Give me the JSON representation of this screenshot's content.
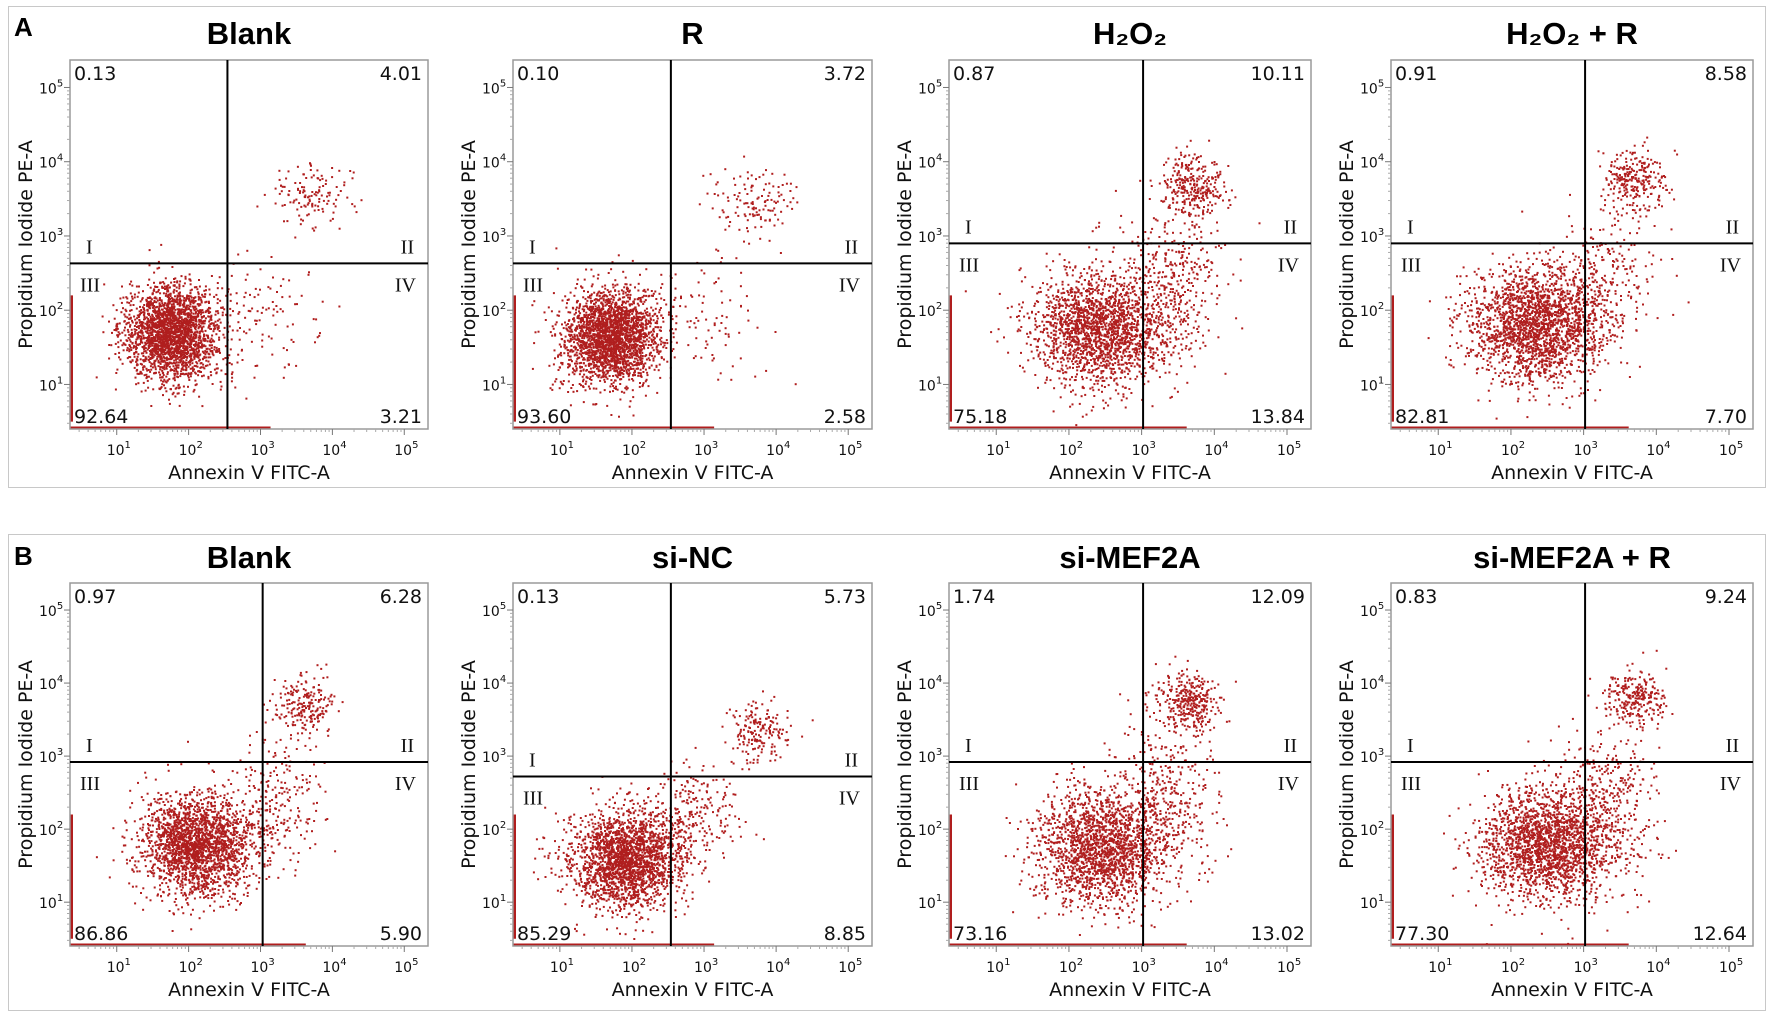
{
  "panels": [
    {
      "label": "A"
    },
    {
      "label": "B"
    }
  ],
  "quadrant_labels": [
    "I",
    "II",
    "III",
    "IV"
  ],
  "dot_color": "#b01e1e",
  "chart_data": [
    {
      "type": "scatter",
      "panel": "A",
      "title": "Blank",
      "xlabel": "Annexin V FITC-A",
      "ylabel": "Propidium Iodide PE-A",
      "x_scale": "log",
      "y_scale": "log",
      "x_range_log": [
        0.35,
        5.33
      ],
      "y_range_log": [
        0.4,
        5.37
      ],
      "tick_exponents": [
        1,
        2,
        3,
        4,
        5
      ],
      "gate_log": {
        "x": 2.54,
        "y": 2.63
      },
      "quadrants": {
        "upper_left": "0.13",
        "upper_right": "4.01",
        "lower_left": "92.64",
        "lower_right": "3.21"
      },
      "populations": [
        {
          "center_log": [
            1.75,
            1.7
          ],
          "sd_log": [
            0.32,
            0.32
          ],
          "share": 0.9
        },
        {
          "center_log": [
            3.7,
            3.55
          ],
          "sd_log": [
            0.3,
            0.2
          ],
          "share": 0.05
        },
        {
          "center_log": [
            2.9,
            1.9
          ],
          "sd_log": [
            0.5,
            0.4
          ],
          "share": 0.05
        }
      ]
    },
    {
      "type": "scatter",
      "panel": "A",
      "title": "R",
      "xlabel": "Annexin V FITC-A",
      "ylabel": "Propidium Iodide PE-A",
      "x_scale": "log",
      "y_scale": "log",
      "x_range_log": [
        0.35,
        5.33
      ],
      "y_range_log": [
        0.4,
        5.37
      ],
      "tick_exponents": [
        1,
        2,
        3,
        4,
        5
      ],
      "gate_log": {
        "x": 2.54,
        "y": 2.63
      },
      "quadrants": {
        "upper_left": "0.10",
        "upper_right": "3.72",
        "lower_left": "93.60",
        "lower_right": "2.58"
      },
      "populations": [
        {
          "center_log": [
            1.7,
            1.65
          ],
          "sd_log": [
            0.32,
            0.32
          ],
          "share": 0.91
        },
        {
          "center_log": [
            3.7,
            3.45
          ],
          "sd_log": [
            0.3,
            0.22
          ],
          "share": 0.05
        },
        {
          "center_log": [
            2.9,
            1.9
          ],
          "sd_log": [
            0.5,
            0.4
          ],
          "share": 0.04
        }
      ]
    },
    {
      "type": "scatter",
      "panel": "A",
      "title": "H₂O₂",
      "xlabel": "Annexin V FITC-A",
      "ylabel": "Propidium Iodide PE-A",
      "x_scale": "log",
      "y_scale": "log",
      "x_range_log": [
        0.35,
        5.33
      ],
      "y_range_log": [
        0.4,
        5.37
      ],
      "tick_exponents": [
        1,
        2,
        3,
        4,
        5
      ],
      "gate_log": {
        "x": 3.02,
        "y": 2.9
      },
      "quadrants": {
        "upper_left": "0.87",
        "upper_right": "10.11",
        "lower_left": "75.18",
        "lower_right": "13.84"
      },
      "populations": [
        {
          "center_log": [
            2.4,
            1.75
          ],
          "sd_log": [
            0.45,
            0.38
          ],
          "share": 0.74
        },
        {
          "center_log": [
            3.7,
            3.7
          ],
          "sd_log": [
            0.22,
            0.2
          ],
          "share": 0.11
        },
        {
          "center_log": [
            3.4,
            2.4
          ],
          "sd_log": [
            0.35,
            0.55
          ],
          "share": 0.15
        }
      ]
    },
    {
      "type": "scatter",
      "panel": "A",
      "title": "H₂O₂ + R",
      "xlabel": "Annexin V FITC-A",
      "ylabel": "Propidium Iodide PE-A",
      "x_scale": "log",
      "y_scale": "log",
      "x_range_log": [
        0.35,
        5.33
      ],
      "y_range_log": [
        0.4,
        5.37
      ],
      "tick_exponents": [
        1,
        2,
        3,
        4,
        5
      ],
      "gate_log": {
        "x": 3.02,
        "y": 2.9
      },
      "quadrants": {
        "upper_left": "0.91",
        "upper_right": "8.58",
        "lower_left": "82.81",
        "lower_right": "7.70"
      },
      "populations": [
        {
          "center_log": [
            2.35,
            1.8
          ],
          "sd_log": [
            0.45,
            0.38
          ],
          "share": 0.8
        },
        {
          "center_log": [
            3.7,
            3.75
          ],
          "sd_log": [
            0.22,
            0.2
          ],
          "share": 0.1
        },
        {
          "center_log": [
            3.3,
            2.4
          ],
          "sd_log": [
            0.35,
            0.5
          ],
          "share": 0.1
        }
      ]
    },
    {
      "type": "scatter",
      "panel": "B",
      "title": "Blank",
      "xlabel": "Annexin V FITC-A",
      "ylabel": "Propidium Iodide PE-A",
      "x_scale": "log",
      "y_scale": "log",
      "x_range_log": [
        0.35,
        5.33
      ],
      "y_range_log": [
        0.4,
        5.37
      ],
      "tick_exponents": [
        1,
        2,
        3,
        4,
        5
      ],
      "gate_log": {
        "x": 3.03,
        "y": 2.92
      },
      "quadrants": {
        "upper_left": "0.97",
        "upper_right": "6.28",
        "lower_left": "86.86",
        "lower_right": "5.90"
      },
      "populations": [
        {
          "center_log": [
            2.1,
            1.8
          ],
          "sd_log": [
            0.4,
            0.35
          ],
          "share": 0.84
        },
        {
          "center_log": [
            3.6,
            3.7
          ],
          "sd_log": [
            0.2,
            0.2
          ],
          "share": 0.08
        },
        {
          "center_log": [
            3.2,
            2.4
          ],
          "sd_log": [
            0.3,
            0.45
          ],
          "share": 0.08
        }
      ]
    },
    {
      "type": "scatter",
      "panel": "B",
      "title": "si-NC",
      "xlabel": "Annexin V FITC-A",
      "ylabel": "Propidium Iodide PE-A",
      "x_scale": "log",
      "y_scale": "log",
      "x_range_log": [
        0.35,
        5.33
      ],
      "y_range_log": [
        0.4,
        5.37
      ],
      "tick_exponents": [
        1,
        2,
        3,
        4,
        5
      ],
      "gate_log": {
        "x": 2.54,
        "y": 2.72
      },
      "quadrants": {
        "upper_left": "0.13",
        "upper_right": "5.73",
        "lower_left": "85.29",
        "lower_right": "8.85"
      },
      "populations": [
        {
          "center_log": [
            1.9,
            1.6
          ],
          "sd_log": [
            0.38,
            0.33
          ],
          "share": 0.84
        },
        {
          "center_log": [
            3.75,
            3.35
          ],
          "sd_log": [
            0.22,
            0.2
          ],
          "share": 0.07
        },
        {
          "center_log": [
            2.8,
            2.2
          ],
          "sd_log": [
            0.35,
            0.35
          ],
          "share": 0.09
        }
      ]
    },
    {
      "type": "scatter",
      "panel": "B",
      "title": "si-MEF2A",
      "xlabel": "Annexin V FITC-A",
      "ylabel": "Propidium Iodide PE-A",
      "x_scale": "log",
      "y_scale": "log",
      "x_range_log": [
        0.35,
        5.33
      ],
      "y_range_log": [
        0.4,
        5.37
      ],
      "tick_exponents": [
        1,
        2,
        3,
        4,
        5
      ],
      "gate_log": {
        "x": 3.02,
        "y": 2.92
      },
      "quadrants": {
        "upper_left": "1.74",
        "upper_right": "12.09",
        "lower_left": "73.16",
        "lower_right": "13.02"
      },
      "populations": [
        {
          "center_log": [
            2.45,
            1.75
          ],
          "sd_log": [
            0.45,
            0.4
          ],
          "share": 0.72
        },
        {
          "center_log": [
            3.65,
            3.75
          ],
          "sd_log": [
            0.22,
            0.2
          ],
          "share": 0.13
        },
        {
          "center_log": [
            3.3,
            2.4
          ],
          "sd_log": [
            0.35,
            0.55
          ],
          "share": 0.15
        }
      ]
    },
    {
      "type": "scatter",
      "panel": "B",
      "title": "si-MEF2A + R",
      "xlabel": "Annexin V FITC-A",
      "ylabel": "Propidium Iodide PE-A",
      "x_scale": "log",
      "y_scale": "log",
      "x_range_log": [
        0.35,
        5.33
      ],
      "y_range_log": [
        0.4,
        5.37
      ],
      "tick_exponents": [
        1,
        2,
        3,
        4,
        5
      ],
      "gate_log": {
        "x": 3.02,
        "y": 2.92
      },
      "quadrants": {
        "upper_left": "0.83",
        "upper_right": "9.24",
        "lower_left": "77.30",
        "lower_right": "12.64"
      },
      "populations": [
        {
          "center_log": [
            2.5,
            1.8
          ],
          "sd_log": [
            0.45,
            0.38
          ],
          "share": 0.76
        },
        {
          "center_log": [
            3.7,
            3.8
          ],
          "sd_log": [
            0.2,
            0.18
          ],
          "share": 0.1
        },
        {
          "center_log": [
            3.3,
            2.4
          ],
          "sd_log": [
            0.35,
            0.5
          ],
          "share": 0.14
        }
      ]
    }
  ]
}
